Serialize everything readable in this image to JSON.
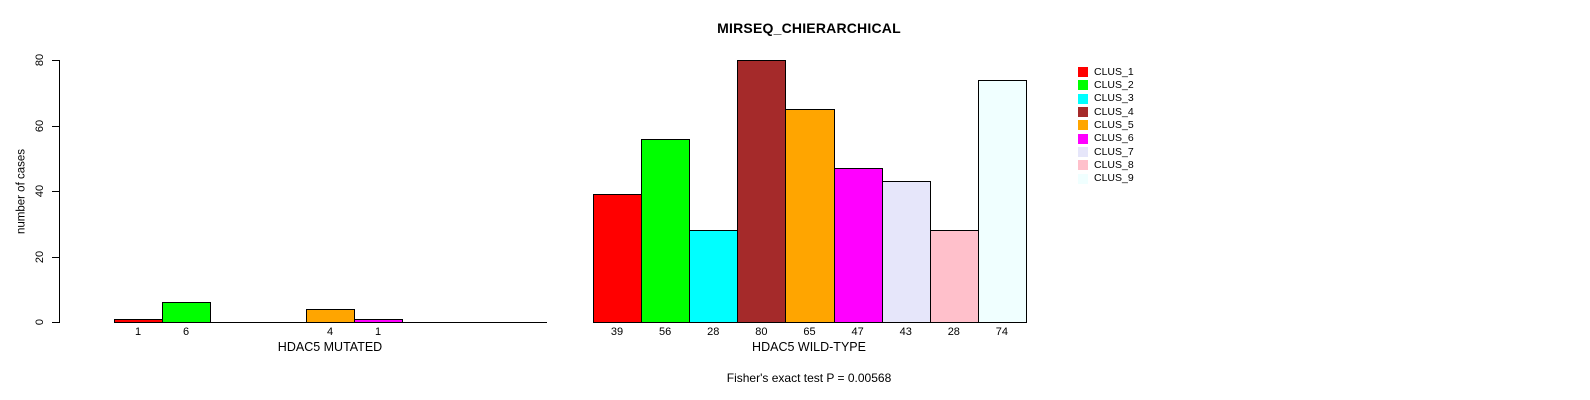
{
  "chart_data": {
    "type": "bar",
    "title": "MIRSEQ_CHIERARCHICAL",
    "ylabel": "number of cases",
    "ylim": [
      0,
      80
    ],
    "yticks": [
      0,
      20,
      40,
      60,
      80
    ],
    "grid": false,
    "legend_position": "right",
    "legend": [
      {
        "label": "CLUS_1",
        "color": "#FF0000"
      },
      {
        "label": "CLUS_2",
        "color": "#00FF00"
      },
      {
        "label": "CLUS_3",
        "color": "#00FFFF"
      },
      {
        "label": "CLUS_4",
        "color": "#A52A2A"
      },
      {
        "label": "CLUS_5",
        "color": "#FFA500"
      },
      {
        "label": "CLUS_6",
        "color": "#FF00FF"
      },
      {
        "label": "CLUS_7",
        "color": "#E6E6FA"
      },
      {
        "label": "CLUS_8",
        "color": "#FFC0CB"
      },
      {
        "label": "CLUS_9",
        "color": "#F0FFFF"
      }
    ],
    "groups": [
      {
        "label": "HDAC5 MUTATED",
        "values": [
          1,
          6,
          0,
          0,
          4,
          1,
          0,
          0,
          0
        ]
      },
      {
        "label": "HDAC5 WILD-TYPE",
        "values": [
          39,
          56,
          28,
          80,
          65,
          47,
          43,
          28,
          74
        ]
      }
    ],
    "annotation": "Fisher's exact test P = 0.00568"
  }
}
